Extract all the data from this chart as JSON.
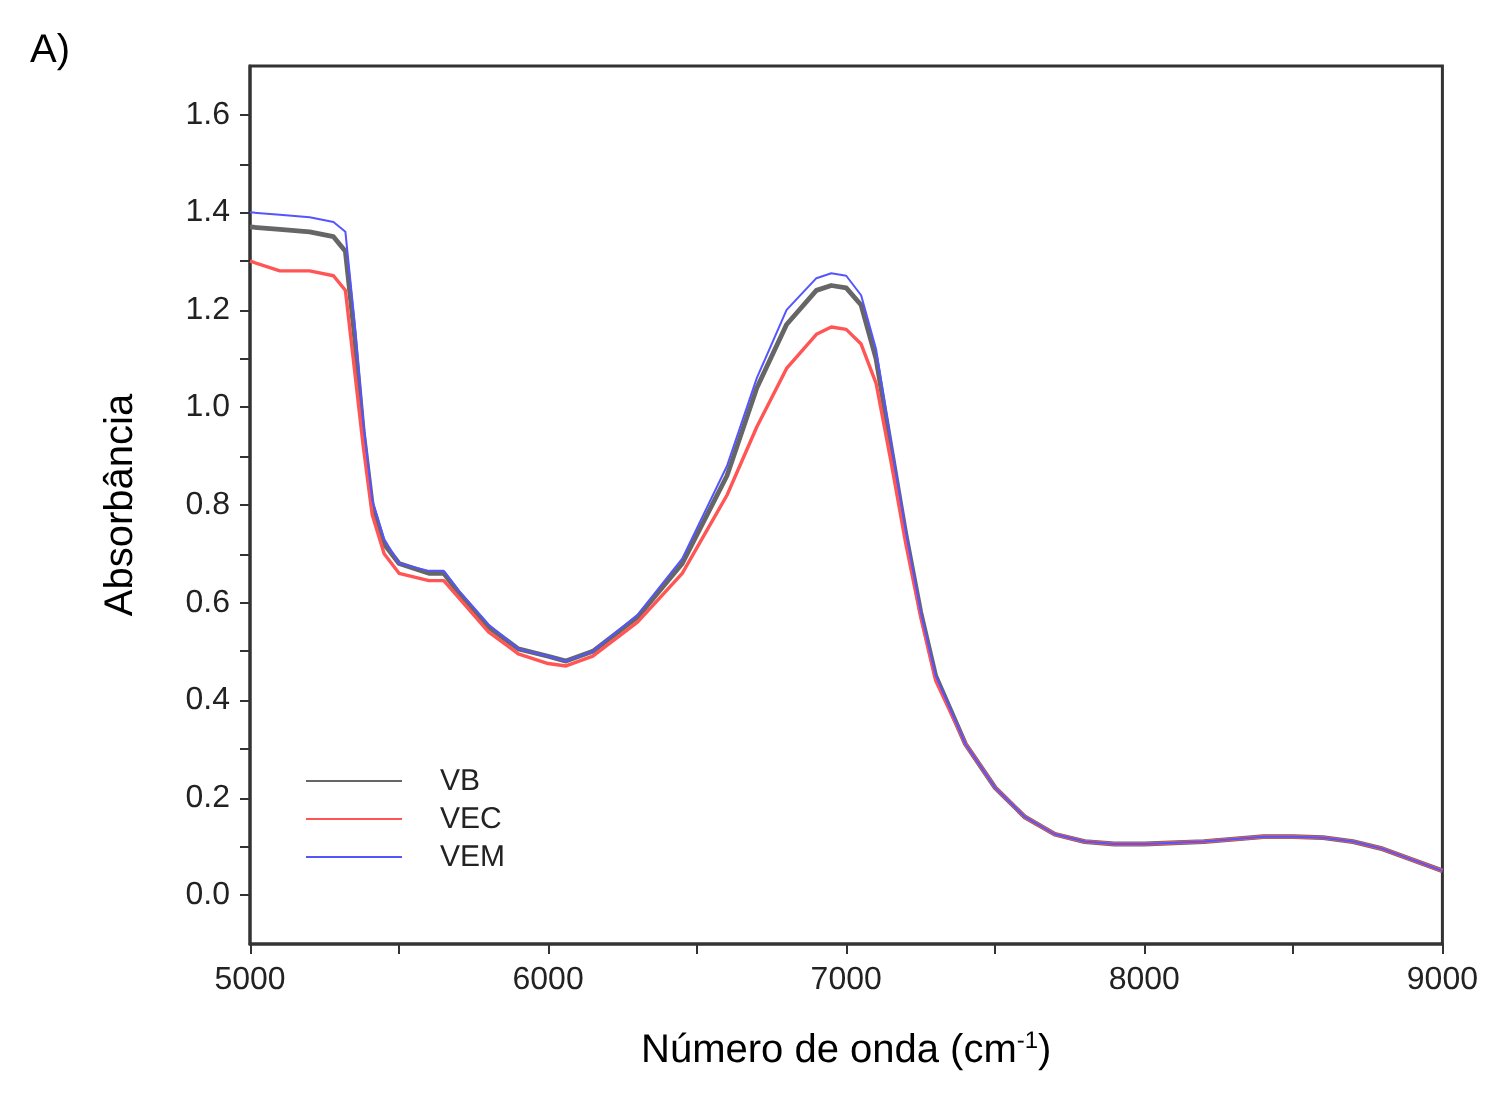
{
  "chart_data": {
    "type": "line",
    "title": "A)",
    "xlabel": "Número de onda (cm$^{-1}$)",
    "ylabel": "Absorbância",
    "x": [
      5000,
      5100,
      5200,
      5280,
      5320,
      5350,
      5380,
      5410,
      5450,
      5500,
      5600,
      5650,
      5700,
      5800,
      5900,
      6000,
      6060,
      6150,
      6300,
      6450,
      6600,
      6700,
      6800,
      6900,
      6950,
      7000,
      7050,
      7100,
      7150,
      7200,
      7250,
      7300,
      7400,
      7500,
      7600,
      7700,
      7800,
      7900,
      8000,
      8200,
      8400,
      8500,
      8600,
      8700,
      8800,
      9000
    ],
    "series": [
      {
        "name": "VB",
        "color": "#666666",
        "values": [
          1.37,
          1.365,
          1.36,
          1.35,
          1.32,
          1.15,
          0.95,
          0.8,
          0.72,
          0.68,
          0.66,
          0.66,
          0.62,
          0.55,
          0.505,
          0.49,
          0.48,
          0.5,
          0.57,
          0.68,
          0.86,
          1.04,
          1.17,
          1.24,
          1.25,
          1.245,
          1.21,
          1.1,
          0.92,
          0.74,
          0.58,
          0.45,
          0.31,
          0.22,
          0.16,
          0.125,
          0.11,
          0.105,
          0.105,
          0.11,
          0.12,
          0.12,
          0.118,
          0.11,
          0.095,
          0.05
        ]
      },
      {
        "name": "VEC",
        "color": "#ff5555",
        "values": [
          1.3,
          1.28,
          1.28,
          1.27,
          1.24,
          1.08,
          0.92,
          0.78,
          0.7,
          0.66,
          0.645,
          0.645,
          0.61,
          0.54,
          0.495,
          0.475,
          0.47,
          0.49,
          0.56,
          0.66,
          0.82,
          0.96,
          1.08,
          1.15,
          1.165,
          1.16,
          1.13,
          1.05,
          0.89,
          0.72,
          0.57,
          0.44,
          0.31,
          0.22,
          0.16,
          0.125,
          0.11,
          0.105,
          0.105,
          0.11,
          0.12,
          0.12,
          0.118,
          0.11,
          0.095,
          0.05
        ]
      },
      {
        "name": "VEM",
        "color": "#5555ff",
        "values": [
          1.4,
          1.395,
          1.39,
          1.38,
          1.36,
          1.18,
          0.97,
          0.81,
          0.73,
          0.68,
          0.665,
          0.665,
          0.625,
          0.555,
          0.505,
          0.49,
          0.48,
          0.5,
          0.575,
          0.69,
          0.88,
          1.06,
          1.2,
          1.265,
          1.275,
          1.27,
          1.23,
          1.12,
          0.93,
          0.745,
          0.58,
          0.45,
          0.31,
          0.22,
          0.16,
          0.125,
          0.11,
          0.105,
          0.105,
          0.11,
          0.12,
          0.12,
          0.118,
          0.11,
          0.095,
          0.05
        ]
      }
    ],
    "xlim": [
      5000,
      9000
    ],
    "xticks": [
      5000,
      {
        "value": 5500,
        "label": null
      },
      6000,
      {
        "value": 6500,
        "label": null
      },
      7000,
      {
        "value": 7500,
        "label": null
      },
      8000,
      {
        "value": 8500,
        "label": null
      },
      9000
    ],
    "ylim": [
      -0.1,
      1.7
    ],
    "yticks": [
      {
        "value": 0,
        "label": "0.0"
      },
      {
        "value": 0.1,
        "label": null
      },
      {
        "value": 0.2,
        "label": "0.2"
      },
      {
        "value": 0.3,
        "label": null
      },
      {
        "value": 0.4,
        "label": "0.4"
      },
      {
        "value": 0.5,
        "label": null
      },
      {
        "value": 0.6,
        "label": "0.6"
      },
      {
        "value": 0.7,
        "label": null
      },
      {
        "value": 0.8,
        "label": "0.8"
      },
      {
        "value": 0.9,
        "label": null
      },
      {
        "value": 1,
        "label": "1.0"
      },
      {
        "value": 1.1,
        "label": null
      },
      {
        "value": 1.2,
        "label": "1.2"
      },
      {
        "value": 1.3,
        "label": null
      },
      {
        "value": 1.4,
        "label": "1.4"
      },
      {
        "value": 1.5,
        "label": null
      },
      {
        "value": 1.6,
        "label": "1.6"
      }
    ],
    "grid": false,
    "legend": "bottom left",
    "marker": "none",
    "line_style": "solid"
  }
}
